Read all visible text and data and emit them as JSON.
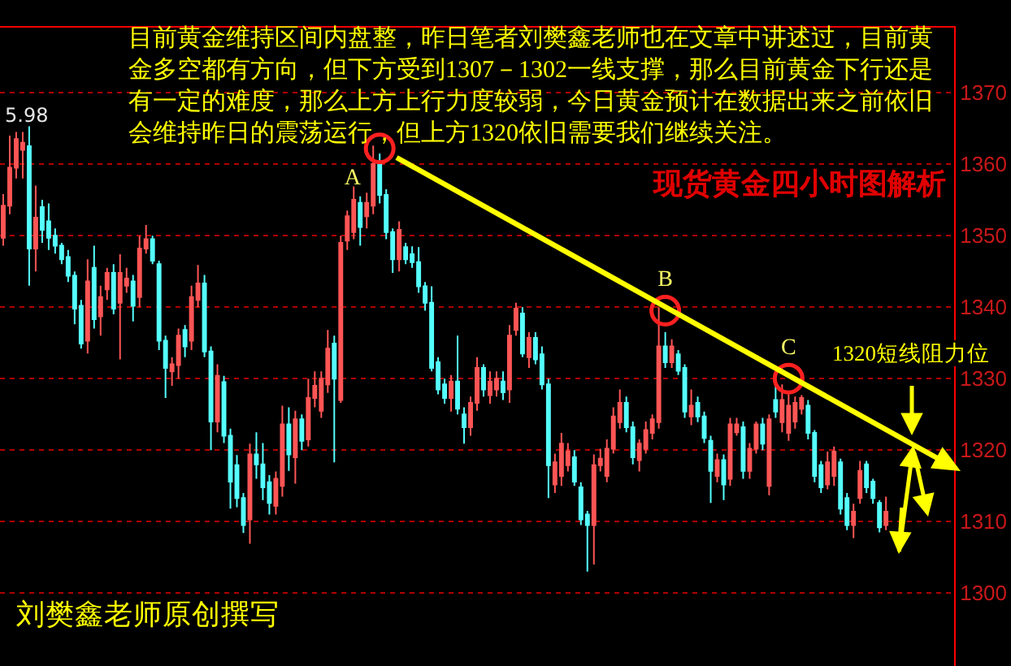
{
  "chart_data": {
    "type": "candlestick",
    "categories": [
      null,
      null,
      null,
      null,
      null,
      null,
      null,
      null,
      null,
      null,
      null,
      null,
      null,
      null,
      null,
      null,
      null,
      null,
      null,
      null,
      null,
      null,
      null,
      null,
      null,
      null,
      null,
      null,
      null,
      null,
      null,
      null,
      null,
      null,
      null,
      null,
      null,
      null,
      null,
      null,
      null,
      null,
      null,
      null,
      null,
      null,
      null,
      null,
      null,
      null,
      null,
      null,
      null,
      null,
      null,
      null,
      null,
      null,
      null,
      null,
      null,
      null,
      null,
      null,
      null,
      null,
      null,
      null,
      null,
      null,
      null,
      null,
      null,
      null,
      null,
      null,
      null,
      null,
      null,
      null,
      null,
      null,
      null,
      null,
      null,
      null,
      null,
      null,
      null,
      null,
      null,
      null,
      null,
      null,
      null,
      null,
      null,
      null,
      null,
      null,
      null,
      null,
      null,
      null,
      null,
      null,
      null,
      null,
      null,
      null,
      null,
      null,
      null,
      null,
      null,
      null,
      null,
      null,
      null,
      null,
      null,
      null,
      null,
      null,
      null,
      null,
      null,
      null,
      null,
      null,
      null,
      null,
      null,
      null,
      null,
      null,
      null,
      null,
      null,
      null,
      null,
      null,
      null,
      null,
      null,
      null,
      null
    ],
    "ohlc": [
      [
        1349.7,
        1355.8,
        1348.6,
        1354.2
      ],
      [
        1354.2,
        1364.0,
        1353.0,
        1359.5
      ],
      [
        1359.5,
        1364.5,
        1358.0,
        1363.5
      ],
      [
        1362.0,
        1364.5,
        1358.0,
        1363.0
      ],
      [
        1362.5,
        1365.3,
        1343.0,
        1348.2
      ],
      [
        1348.2,
        1357.0,
        1345.0,
        1352.5
      ],
      [
        1354.0,
        1355.0,
        1349.0,
        1350.8
      ],
      [
        1352.0,
        1354.5,
        1348.0,
        1349.7
      ],
      [
        1350.0,
        1351.0,
        1347.5,
        1348.6
      ],
      [
        1348.6,
        1349.0,
        1346.0,
        1346.7
      ],
      [
        1347.0,
        1348.0,
        1343.5,
        1344.4
      ],
      [
        1344.4,
        1345.0,
        1337.6,
        1339.8
      ],
      [
        1340.2,
        1341.0,
        1334.2,
        1334.9
      ],
      [
        1335.3,
        1346.7,
        1333.5,
        1343.6
      ],
      [
        1345.5,
        1348.6,
        1337.0,
        1338.3
      ],
      [
        1338.7,
        1343.0,
        1336.0,
        1341.4
      ],
      [
        1342.5,
        1345.5,
        1341.0,
        1344.8
      ],
      [
        1344.8,
        1346.0,
        1339.0,
        1339.8
      ],
      [
        1340.6,
        1347.4,
        1332.7,
        1344.8
      ],
      [
        1343.0,
        1345.5,
        1342.0,
        1344.0
      ],
      [
        1343.6,
        1344.5,
        1338.0,
        1340.2
      ],
      [
        1341.4,
        1350.0,
        1340.0,
        1348.2
      ],
      [
        1348.2,
        1351.5,
        1347.5,
        1349.5
      ],
      [
        1349.5,
        1350.0,
        1346.0,
        1346.5
      ],
      [
        1346.0,
        1346.5,
        1334.0,
        1335.3
      ],
      [
        1335.3,
        1336.0,
        1327.3,
        1331.5
      ],
      [
        1331.0,
        1333.0,
        1329.0,
        1332.0
      ],
      [
        1331.9,
        1337.0,
        1330.0,
        1336.0
      ],
      [
        1336.8,
        1337.5,
        1333.0,
        1334.5
      ],
      [
        1335.3,
        1343.0,
        1334.0,
        1341.4
      ],
      [
        1341.0,
        1345.9,
        1340.0,
        1343.3
      ],
      [
        1343.3,
        1344.5,
        1333.0,
        1333.8
      ],
      [
        1333.8,
        1334.5,
        1320.0,
        1324.0
      ],
      [
        1324.0,
        1332.0,
        1322.5,
        1330.4
      ],
      [
        1329.5,
        1330.4,
        1321.0,
        1322.0
      ],
      [
        1322.0,
        1323.0,
        1311.8,
        1315.6
      ],
      [
        1317.9,
        1319.3,
        1312.0,
        1313.3
      ],
      [
        1313.3,
        1314.0,
        1308.4,
        1309.5
      ],
      [
        1310.3,
        1320.9,
        1306.9,
        1319.4
      ],
      [
        1319.4,
        1322.5,
        1316.0,
        1318.0
      ],
      [
        1318.0,
        1321.0,
        1313.0,
        1314.8
      ],
      [
        1315.5,
        1316.5,
        1311.0,
        1312.6
      ],
      [
        1312.2,
        1317.0,
        1311.0,
        1316.0
      ],
      [
        1315.0,
        1326.2,
        1313.5,
        1323.6
      ],
      [
        1323.6,
        1326.0,
        1317.1,
        1319.4
      ],
      [
        1319.0,
        1325.5,
        1315.3,
        1324.3
      ],
      [
        1324.3,
        1325.0,
        1320.0,
        1321.3
      ],
      [
        1321.5,
        1330.0,
        1320.5,
        1327.3
      ],
      [
        1327.3,
        1331.0,
        1326.0,
        1329.0
      ],
      [
        1325.5,
        1331.0,
        1324.5,
        1330.0
      ],
      [
        1329.2,
        1336.8,
        1328.0,
        1334.2
      ],
      [
        1334.9,
        1336.0,
        1318.3,
        1330.0
      ],
      [
        1327.0,
        1350.0,
        1326.6,
        1349.0
      ],
      [
        1349.3,
        1353.5,
        1348.0,
        1352.7
      ],
      [
        1350.5,
        1356.9,
        1349.5,
        1355.0
      ],
      [
        1354.6,
        1355.5,
        1348.6,
        1351.2
      ],
      [
        1352.7,
        1356.0,
        1351.0,
        1354.6
      ],
      [
        1354.2,
        1362.6,
        1353.0,
        1360.0
      ],
      [
        1360.3,
        1361.5,
        1354.5,
        1355.7
      ],
      [
        1355.7,
        1356.5,
        1349.5,
        1350.5
      ],
      [
        1350.5,
        1351.0,
        1344.8,
        1346.7
      ],
      [
        1346.7,
        1352.0,
        1345.0,
        1350.8
      ],
      [
        1348.4,
        1349.0,
        1346.0,
        1346.7
      ],
      [
        1347.4,
        1348.5,
        1345.5,
        1346.3
      ],
      [
        1346.3,
        1348.4,
        1342.0,
        1342.9
      ],
      [
        1342.9,
        1343.5,
        1339.5,
        1340.6
      ],
      [
        1340.6,
        1342.9,
        1331.0,
        1331.5
      ],
      [
        1332.3,
        1333.0,
        1327.8,
        1328.5
      ],
      [
        1329.2,
        1330.0,
        1326.5,
        1327.3
      ],
      [
        1327.3,
        1330.5,
        1325.4,
        1329.6
      ],
      [
        1329.6,
        1336.0,
        1325.0,
        1325.8
      ],
      [
        1325.0,
        1326.0,
        1320.9,
        1323.2
      ],
      [
        1323.2,
        1327.5,
        1322.0,
        1326.6
      ],
      [
        1326.6,
        1333.0,
        1325.5,
        1331.5
      ],
      [
        1331.5,
        1332.0,
        1327.5,
        1328.5
      ],
      [
        1327.7,
        1331.0,
        1326.5,
        1329.6
      ],
      [
        1328.5,
        1331.0,
        1327.5,
        1330.0
      ],
      [
        1329.6,
        1331.0,
        1327.0,
        1328.1
      ],
      [
        1328.5,
        1337.5,
        1326.6,
        1336.0
      ],
      [
        1336.8,
        1340.6,
        1336.0,
        1339.8
      ],
      [
        1339.1,
        1340.0,
        1333.0,
        1333.5
      ],
      [
        1333.0,
        1336.5,
        1331.5,
        1335.7
      ],
      [
        1335.7,
        1336.5,
        1332.0,
        1332.7
      ],
      [
        1333.4,
        1334.5,
        1328.5,
        1329.2
      ],
      [
        1329.2,
        1330.0,
        1313.3,
        1317.9
      ],
      [
        1315.2,
        1319.5,
        1314.0,
        1318.3
      ],
      [
        1316.4,
        1322.4,
        1315.0,
        1320.9
      ],
      [
        1317.9,
        1321.0,
        1317.0,
        1319.8
      ],
      [
        1319.0,
        1320.0,
        1315.0,
        1315.6
      ],
      [
        1314.8,
        1315.5,
        1309.5,
        1310.3
      ],
      [
        1311.0,
        1311.5,
        1303.0,
        1309.5
      ],
      [
        1309.5,
        1319.4,
        1304.0,
        1317.9
      ],
      [
        1317.9,
        1320.2,
        1317.0,
        1318.8
      ],
      [
        1316.4,
        1321.5,
        1315.5,
        1320.2
      ],
      [
        1320.2,
        1326.0,
        1319.5,
        1324.7
      ],
      [
        1323.9,
        1328.5,
        1323.0,
        1326.6
      ],
      [
        1326.6,
        1327.5,
        1322.5,
        1323.2
      ],
      [
        1323.2,
        1324.0,
        1318.0,
        1319.0
      ],
      [
        1318.6,
        1321.5,
        1317.0,
        1320.9
      ],
      [
        1320.2,
        1324.0,
        1319.5,
        1322.8
      ],
      [
        1322.4,
        1325.0,
        1321.5,
        1324.3
      ],
      [
        1323.9,
        1340.0,
        1323.0,
        1334.5
      ],
      [
        1334.5,
        1336.5,
        1331.5,
        1332.3
      ],
      [
        1332.3,
        1335.5,
        1331.5,
        1334.5
      ],
      [
        1333.4,
        1334.0,
        1330.5,
        1331.1
      ],
      [
        1331.5,
        1332.0,
        1324.5,
        1325.4
      ],
      [
        1324.7,
        1328.5,
        1323.5,
        1326.2
      ],
      [
        1326.6,
        1327.5,
        1323.9,
        1324.7
      ],
      [
        1324.7,
        1325.4,
        1321.0,
        1321.7
      ],
      [
        1321.3,
        1322.0,
        1312.6,
        1317.1
      ],
      [
        1316.4,
        1319.5,
        1315.5,
        1318.6
      ],
      [
        1318.6,
        1319.4,
        1313.0,
        1315.2
      ],
      [
        1316.0,
        1324.5,
        1315.0,
        1323.6
      ],
      [
        1322.5,
        1324.5,
        1322.0,
        1323.6
      ],
      [
        1323.2,
        1324.0,
        1316.0,
        1317.1
      ],
      [
        1317.1,
        1321.0,
        1316.0,
        1320.2
      ],
      [
        1320.2,
        1324.0,
        1319.5,
        1323.6
      ],
      [
        1323.6,
        1324.5,
        1320.0,
        1320.9
      ],
      [
        1315.0,
        1325.0,
        1313.7,
        1324.3
      ],
      [
        1327.0,
        1329.5,
        1324.5,
        1325.4
      ],
      [
        1323.9,
        1329.2,
        1322.5,
        1327.0
      ],
      [
        1322.4,
        1328.0,
        1321.3,
        1326.2
      ],
      [
        1324.0,
        1327.5,
        1323.0,
        1326.6
      ],
      [
        1325.8,
        1327.7,
        1325.0,
        1327.3
      ],
      [
        1326.2,
        1327.0,
        1321.5,
        1322.4
      ],
      [
        1322.4,
        1322.8,
        1315.5,
        1316.4
      ],
      [
        1317.9,
        1318.5,
        1314.0,
        1314.8
      ],
      [
        1315.2,
        1319.8,
        1314.5,
        1318.3
      ],
      [
        1316.4,
        1320.5,
        1315.0,
        1319.8
      ],
      [
        1318.3,
        1318.8,
        1311.0,
        1311.8
      ],
      [
        1313.3,
        1314.0,
        1308.8,
        1309.5
      ],
      [
        1309.5,
        1312.5,
        1307.7,
        1311.4
      ],
      [
        1313.3,
        1318.5,
        1312.5,
        1317.1
      ],
      [
        1318.0,
        1318.5,
        1314.0,
        1314.8
      ],
      [
        1315.6,
        1316.0,
        1312.5,
        1313.3
      ],
      [
        1312.6,
        1313.0,
        1308.5,
        1309.2
      ],
      [
        1309.5,
        1313.5,
        1308.8,
        1311.4
      ],
      null,
      null,
      null,
      null,
      null,
      null,
      null,
      null,
      null,
      null
    ],
    "colors": [
      "#ff5555",
      "#ff5555",
      "#ff5555",
      "#ff5555",
      "#55ffff",
      "#ff5555",
      "#55ffff",
      "#55ffff",
      "#55ffff",
      "#55ffff",
      "#55ffff",
      "#55ffff",
      "#55ffff",
      "#ff5555",
      "#55ffff",
      "#ff5555",
      "#ff5555",
      "#55ffff",
      "#ff5555",
      "#ff5555",
      "#55ffff",
      "#ff5555",
      "#ff5555",
      "#55ffff",
      "#55ffff",
      "#55ffff",
      "#ff5555",
      "#ff5555",
      "#55ffff",
      "#ff5555",
      "#ff5555",
      "#55ffff",
      "#55ffff",
      "#ff5555",
      "#55ffff",
      "#55ffff",
      "#55ffff",
      "#55ffff",
      "#ff5555",
      "#55ffff",
      "#55ffff",
      "#55ffff",
      "#ff5555",
      "#ff5555",
      "#55ffff",
      "#ff5555",
      "#55ffff",
      "#ff5555",
      "#ff5555",
      "#ff5555",
      "#ff5555",
      "#55ffff",
      "#ff5555",
      "#ff5555",
      "#ff5555",
      "#55ffff",
      "#ff5555",
      "#ff5555",
      "#55ffff",
      "#55ffff",
      "#55ffff",
      "#ff5555",
      "#55ffff",
      "#55ffff",
      "#55ffff",
      "#55ffff",
      "#55ffff",
      "#55ffff",
      "#55ffff",
      "#ff5555",
      "#55ffff",
      "#55ffff",
      "#ff5555",
      "#ff5555",
      "#55ffff",
      "#ff5555",
      "#ff5555",
      "#55ffff",
      "#ff5555",
      "#ff5555",
      "#55ffff",
      "#ff5555",
      "#55ffff",
      "#55ffff",
      "#55ffff",
      "#ff5555",
      "#ff5555",
      "#ff5555",
      "#55ffff",
      "#55ffff",
      "#55ffff",
      "#ff5555",
      "#ff5555",
      "#ff5555",
      "#ff5555",
      "#ff5555",
      "#55ffff",
      "#55ffff",
      "#ff5555",
      "#ff5555",
      "#ff5555",
      "#ff5555",
      "#55ffff",
      "#ff5555",
      "#55ffff",
      "#55ffff",
      "#ff5555",
      "#55ffff",
      "#55ffff",
      "#55ffff",
      "#ff5555",
      "#55ffff",
      "#ff5555",
      "#ff5555",
      "#55ffff",
      "#ff5555",
      "#ff5555",
      "#55ffff",
      "#ff5555",
      "#55ffff",
      "#ff5555",
      "#ff5555",
      "#ff5555",
      "#ff5555",
      "#55ffff",
      "#55ffff",
      "#55ffff",
      "#ff5555",
      "#ff5555",
      "#55ffff",
      "#55ffff",
      "#ff5555",
      "#ff5555",
      "#55ffff",
      "#55ffff",
      "#55ffff",
      "#ff5555",
      null,
      null,
      null,
      null,
      null,
      null,
      null,
      null,
      null,
      null
    ],
    "series": [
      {
        "type": "scatter",
        "color": "#ff2020",
        "marker": "circle",
        "values": [
          null,
          null,
          null,
          null,
          null,
          null,
          null,
          null,
          null,
          null,
          null,
          null,
          null,
          null,
          null,
          null,
          null,
          null,
          null,
          null,
          null,
          null,
          null,
          null,
          null,
          null,
          null,
          null,
          null,
          null,
          null,
          null,
          null,
          null,
          null,
          null,
          null,
          null,
          null,
          null,
          null,
          null,
          null,
          null,
          null,
          null,
          null,
          null,
          null,
          null,
          null,
          null,
          null,
          null,
          null,
          null,
          null,
          null,
          1362.2,
          null,
          null,
          null,
          null,
          null,
          null,
          null,
          null,
          null,
          null,
          null,
          null,
          null,
          null,
          null,
          null,
          null,
          null,
          null,
          null,
          null,
          null,
          null,
          null,
          null,
          null,
          null,
          null,
          null,
          null,
          null,
          null,
          null,
          null,
          null,
          null,
          null,
          null,
          null,
          null,
          null,
          null,
          null,
          1339.5,
          null,
          null,
          null,
          null,
          null,
          null,
          null,
          null,
          null,
          null,
          null,
          null,
          null,
          null,
          null,
          null,
          null,
          null,
          1330.0,
          null,
          null,
          null,
          null,
          null,
          null,
          null,
          null,
          null,
          null,
          null,
          null,
          null,
          null,
          null,
          null,
          null,
          null,
          null,
          null,
          null,
          null,
          null,
          null,
          null
        ],
        "value_labels": [
          null,
          null,
          null,
          null,
          null,
          null,
          null,
          null,
          null,
          null,
          null,
          null,
          null,
          null,
          null,
          null,
          null,
          null,
          null,
          null,
          null,
          null,
          null,
          null,
          null,
          null,
          null,
          null,
          null,
          null,
          null,
          null,
          null,
          null,
          null,
          null,
          null,
          null,
          null,
          null,
          null,
          null,
          null,
          null,
          null,
          null,
          null,
          null,
          null,
          null,
          null,
          null,
          null,
          null,
          null,
          null,
          null,
          null,
          "A",
          null,
          null,
          null,
          null,
          null,
          null,
          null,
          null,
          null,
          null,
          null,
          null,
          null,
          null,
          null,
          null,
          null,
          null,
          null,
          null,
          null,
          null,
          null,
          null,
          null,
          null,
          null,
          null,
          null,
          null,
          null,
          null,
          null,
          null,
          null,
          null,
          null,
          null,
          null,
          null,
          null,
          null,
          null,
          "B",
          null,
          null,
          null,
          null,
          null,
          null,
          null,
          null,
          null,
          null,
          null,
          null,
          null,
          null,
          null,
          null,
          null,
          null,
          "C",
          null,
          null,
          null,
          null,
          null,
          null,
          null,
          null,
          null,
          null,
          null,
          null,
          null,
          null,
          null,
          null,
          null,
          null,
          null,
          null,
          null,
          null,
          null,
          null,
          null
        ]
      }
    ],
    "ylim": [
      1289.8,
      1379.1
    ],
    "yticks": [
      1300,
      1310,
      1320,
      1330,
      1340,
      1350,
      1360,
      1370
    ],
    "grid": "y",
    "tick_labels": "y",
    "annotations": [
      "目前黄金维持区间内盘整，昨日笔者刘樊鑫老师也在文章中讲述过，目前黄金多空都有方向，但下方受到1307－1302一线支撑，那么目前黄金下行还是有一定的难度，那么上方上行力度较弱，今日黄金预计在数据出来之前依旧会维持昨日的震荡运行，但上方1320依旧需要我们继续关注。",
      "现货黄金四小时图解析",
      "1320短线阻力位",
      "刘樊鑫老师原创撰写",
      "5.98"
    ]
  }
}
